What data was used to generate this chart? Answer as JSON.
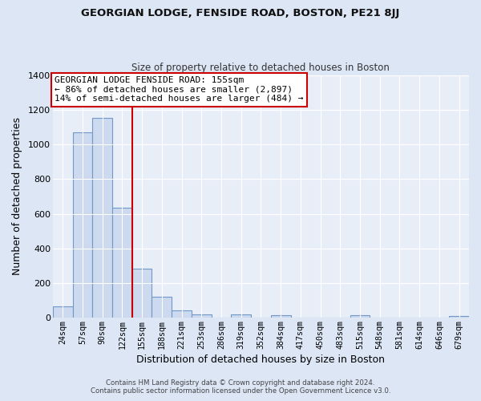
{
  "title": "GEORGIAN LODGE, FENSIDE ROAD, BOSTON, PE21 8JJ",
  "subtitle": "Size of property relative to detached houses in Boston",
  "xlabel": "Distribution of detached houses by size in Boston",
  "ylabel": "Number of detached properties",
  "bar_labels": [
    "24sqm",
    "57sqm",
    "90sqm",
    "122sqm",
    "155sqm",
    "188sqm",
    "221sqm",
    "253sqm",
    "286sqm",
    "319sqm",
    "352sqm",
    "384sqm",
    "417sqm",
    "450sqm",
    "483sqm",
    "515sqm",
    "548sqm",
    "581sqm",
    "614sqm",
    "646sqm",
    "679sqm"
  ],
  "bar_values": [
    65,
    1070,
    1155,
    635,
    285,
    120,
    45,
    20,
    0,
    20,
    0,
    15,
    0,
    0,
    0,
    15,
    0,
    0,
    0,
    0,
    10
  ],
  "bar_color": "#ccd9ee",
  "bar_edge_color": "#7098c8",
  "vline_index": 4,
  "vline_color": "#cc0000",
  "ylim": [
    0,
    1400
  ],
  "yticks": [
    0,
    200,
    400,
    600,
    800,
    1000,
    1200,
    1400
  ],
  "annotation_title": "GEORGIAN LODGE FENSIDE ROAD: 155sqm",
  "annotation_line1": "← 86% of detached houses are smaller (2,897)",
  "annotation_line2": "14% of semi-detached houses are larger (484) →",
  "annotation_box_color": "#ffffff",
  "annotation_box_edge": "#cc0000",
  "footer1": "Contains HM Land Registry data © Crown copyright and database right 2024.",
  "footer2": "Contains public sector information licensed under the Open Government Licence v3.0.",
  "bg_color": "#dce6f5",
  "plot_bg_color": "#e8eef8"
}
